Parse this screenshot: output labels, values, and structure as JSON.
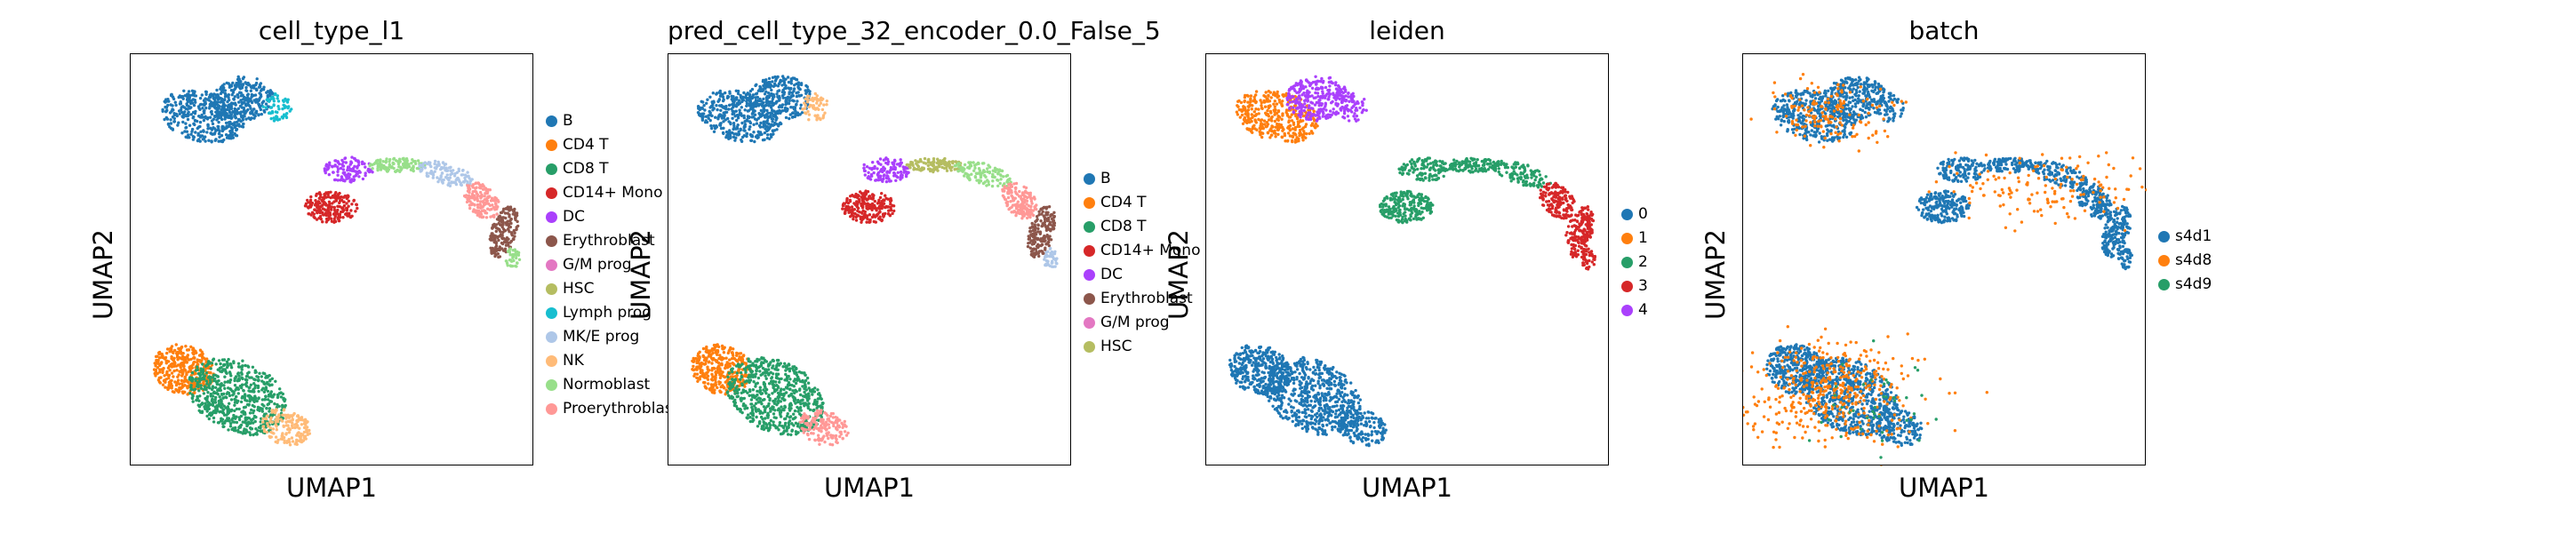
{
  "chart_data": [
    {
      "type": "scatter",
      "title": "cell_type_l1",
      "xlabel": "UMAP1",
      "ylabel": "UMAP2",
      "legend_placement": "right",
      "legend": [
        {
          "label": "B",
          "color": "#1f77b4"
        },
        {
          "label": "CD4 T",
          "color": "#ff7f0e"
        },
        {
          "label": "CD8 T",
          "color": "#279e68"
        },
        {
          "label": "CD14+ Mono",
          "color": "#d62728"
        },
        {
          "label": "DC",
          "color": "#aa40fc"
        },
        {
          "label": "Erythroblast",
          "color": "#8c564b"
        },
        {
          "label": "G/M prog",
          "color": "#e377c2"
        },
        {
          "label": "HSC",
          "color": "#b5bd61"
        },
        {
          "label": "Lymph prog",
          "color": "#17becf"
        },
        {
          "label": "MK/E prog",
          "color": "#aec7e8"
        },
        {
          "label": "NK",
          "color": "#ffbb78"
        },
        {
          "label": "Normoblast",
          "color": "#98df8a"
        },
        {
          "label": "Proerythroblast",
          "color": "#ff9896"
        }
      ]
    },
    {
      "type": "scatter",
      "title": "pred_cell_type_32_encoder_0.0_False_5",
      "xlabel": "UMAP1",
      "ylabel": "UMAP2",
      "legend_placement": "right",
      "legend": [
        {
          "label": "B",
          "color": "#1f77b4"
        },
        {
          "label": "CD4 T",
          "color": "#ff7f0e"
        },
        {
          "label": "CD8 T",
          "color": "#279e68"
        },
        {
          "label": "CD14+ Mono",
          "color": "#d62728"
        },
        {
          "label": "DC",
          "color": "#aa40fc"
        },
        {
          "label": "Erythroblast",
          "color": "#8c564b"
        },
        {
          "label": "G/M prog",
          "color": "#e377c2"
        },
        {
          "label": "HSC",
          "color": "#b5bd61"
        }
      ]
    },
    {
      "type": "scatter",
      "title": "leiden",
      "xlabel": "UMAP1",
      "ylabel": "UMAP2",
      "legend_placement": "right",
      "legend": [
        {
          "label": "0",
          "color": "#1f77b4"
        },
        {
          "label": "1",
          "color": "#ff7f0e"
        },
        {
          "label": "2",
          "color": "#279e68"
        },
        {
          "label": "3",
          "color": "#d62728"
        },
        {
          "label": "4",
          "color": "#aa40fc"
        }
      ]
    },
    {
      "type": "scatter",
      "title": "batch",
      "xlabel": "UMAP1",
      "ylabel": "UMAP2",
      "legend_placement": "right",
      "legend": [
        {
          "label": "s4d1",
          "color": "#1f77b4"
        },
        {
          "label": "s4d8",
          "color": "#ff7f0e"
        },
        {
          "label": "s4d9",
          "color": "#279e68"
        }
      ]
    }
  ]
}
